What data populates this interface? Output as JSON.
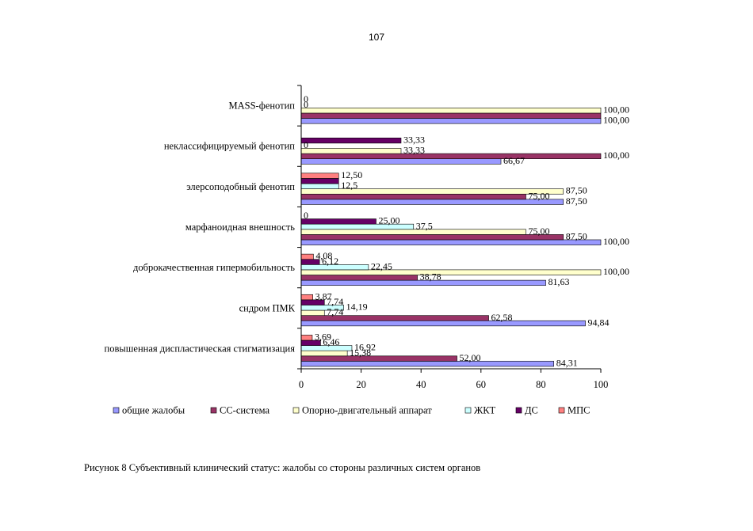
{
  "page": {
    "number": "107"
  },
  "figure": {
    "caption": "Рисунок 8 Субъективный клинический статус: жалобы со стороны различных систем органов"
  },
  "chart_data": {
    "type": "bar",
    "orientation": "horizontal",
    "title": "",
    "xlabel": "",
    "ylabel": "",
    "xlim": [
      0,
      100
    ],
    "x_ticks": [
      "0",
      "20",
      "40",
      "60",
      "80",
      "100"
    ],
    "grid": false,
    "legend_position": "bottom",
    "categories": [
      "MASS-фенотип",
      "неклассифицируемый фенотип",
      "элерсоподобный фенотип",
      "марфаноидная внешность",
      "доброкачественная гипермобильность",
      "сндром ПМК",
      "повышенная диспластическая стигматизация"
    ],
    "series": [
      {
        "name": "общие жалобы",
        "color": "#9999FF",
        "values": [
          100,
          66.67,
          87.5,
          100,
          81.63,
          94.84,
          84.31
        ],
        "labels": [
          "100,00",
          "66,67",
          "87,50",
          "100,00",
          "81,63",
          "94,84",
          "84,31"
        ]
      },
      {
        "name": "СС-система",
        "color": "#993366",
        "values": [
          100,
          100,
          75,
          87.5,
          38.78,
          62.58,
          52
        ],
        "labels": [
          "",
          "100,00",
          "75,00",
          "87,50",
          "38,78",
          "62,58",
          "52,00"
        ]
      },
      {
        "name": "Опорно-двигательный аппарат",
        "color": "#FFFFCC",
        "values": [
          100,
          33.33,
          87.5,
          75,
          100,
          7.74,
          15.38
        ],
        "labels": [
          "100,00",
          "33,33",
          "87,50",
          "75,00",
          "100,00",
          "7,74",
          "15,38"
        ]
      },
      {
        "name": "ЖКТ",
        "color": "#CCFFFF",
        "values": [
          0,
          0,
          12.5,
          37.5,
          22.45,
          14.19,
          16.92
        ],
        "labels": [
          "0",
          "0",
          "12,5",
          "37,5",
          "22,45",
          "14,19",
          "16,92"
        ]
      },
      {
        "name": "ДС",
        "color": "#660066",
        "values": [
          0,
          33.33,
          12.5,
          25,
          6.12,
          7.74,
          6.46
        ],
        "labels": [
          "0",
          "33,33",
          "",
          "25,00",
          "6,12",
          "7,74",
          "6,46"
        ]
      },
      {
        "name": "МПС",
        "color": "#FF8080",
        "values": [
          0,
          0,
          12.5,
          0,
          4.08,
          3.87,
          3.69
        ],
        "labels": [
          "",
          "",
          "12,50",
          "0",
          "4,08",
          "3,87",
          "3,69"
        ]
      }
    ]
  }
}
